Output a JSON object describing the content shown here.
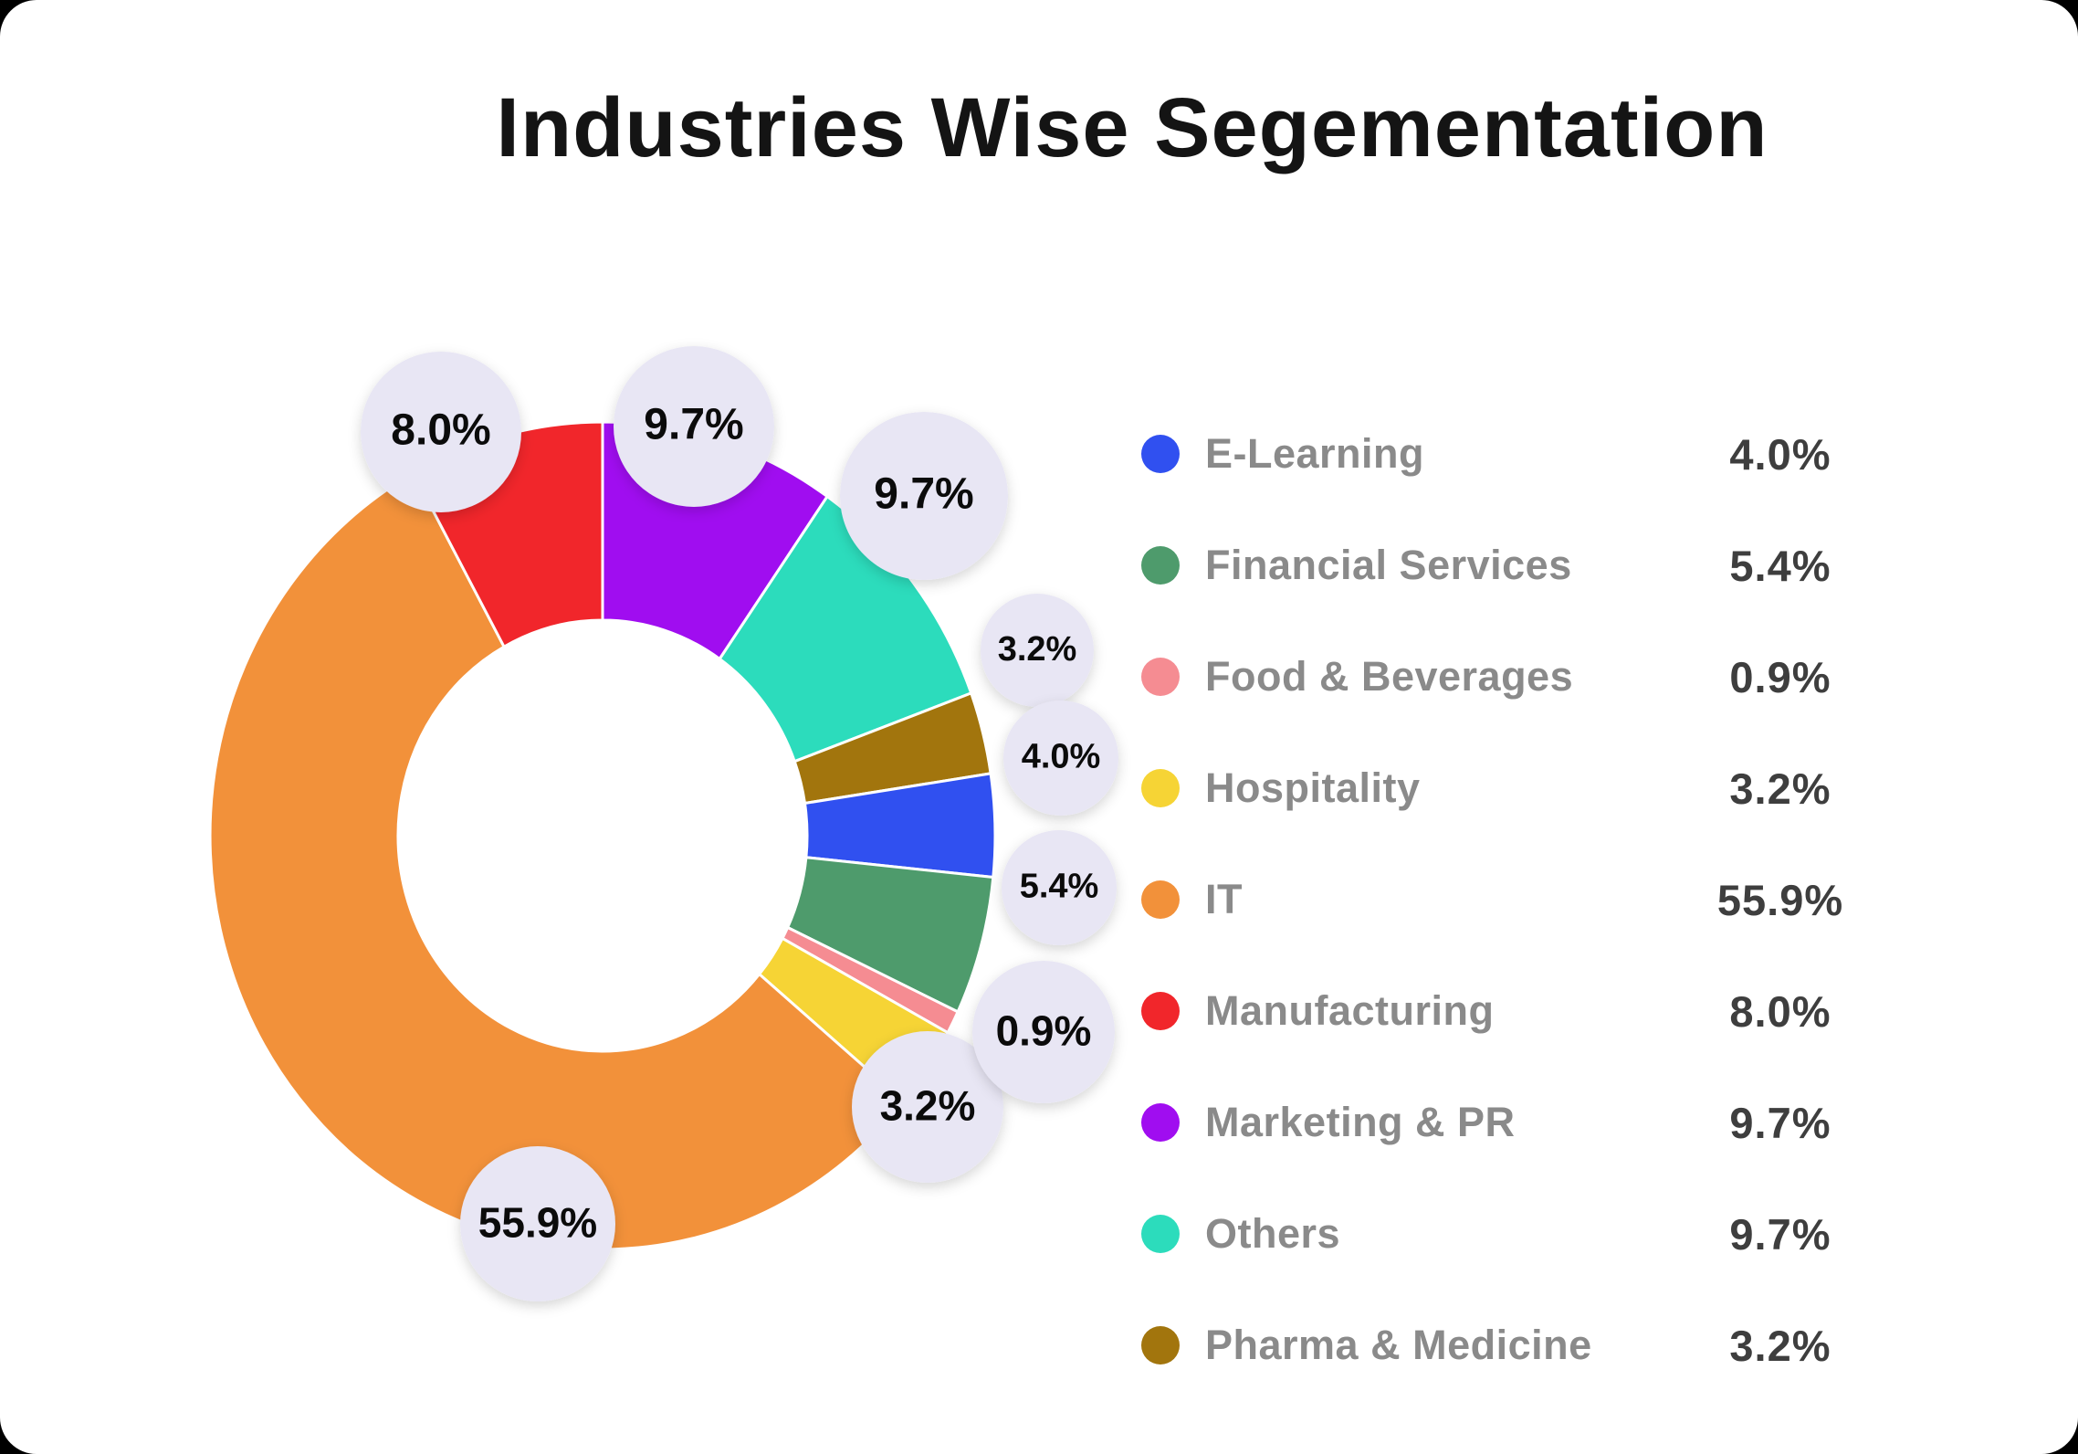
{
  "title": "Industries Wise Segementation",
  "colors": {
    "background": "#000000",
    "card": "#FFFFFF",
    "bubble_fill": "#E8E6F4",
    "bubble_text": "#0B0B0B",
    "legend_label": "#8A8A8A",
    "legend_value": "#3E3E3E",
    "title_text": "#141414"
  },
  "chart_data": {
    "type": "pie",
    "variant": "donut",
    "title": "Industries Wise Segementation",
    "inner_radius_ratio": 0.52,
    "start_angle_deg": 0,
    "direction": "clockwise",
    "legend_position": "right",
    "grid": false,
    "segments_clockwise_from_top": [
      {
        "label": "Marketing & PR",
        "value": 9.7,
        "color": "#A00DF0"
      },
      {
        "label": "Others",
        "value": 9.7,
        "color": "#2CDCBC"
      },
      {
        "label": "Pharma & Medicine",
        "value": 3.2,
        "color": "#A2750D"
      },
      {
        "label": "E-Learning",
        "value": 4.0,
        "color": "#3050F0"
      },
      {
        "label": "Financial Services",
        "value": 5.4,
        "color": "#4E9B6C"
      },
      {
        "label": "Food & Beverages",
        "value": 0.9,
        "color": "#F58C92"
      },
      {
        "label": "Hospitality",
        "value": 3.2,
        "color": "#F6D435"
      },
      {
        "label": "IT",
        "value": 55.9,
        "color": "#F2913A"
      },
      {
        "label": "Manufacturing",
        "value": 8.0,
        "color": "#F1262B"
      }
    ],
    "legend": [
      {
        "label": "E-Learning",
        "value": "4.0%",
        "color": "#3050F0"
      },
      {
        "label": "Financial Services",
        "value": "5.4%",
        "color": "#4E9B6C"
      },
      {
        "label": "Food & Beverages",
        "value": "0.9%",
        "color": "#F58C92"
      },
      {
        "label": "Hospitality",
        "value": "3.2%",
        "color": "#F6D435"
      },
      {
        "label": "IT",
        "value": "55.9%",
        "color": "#F2913A"
      },
      {
        "label": "Manufacturing",
        "value": "8.0%",
        "color": "#F1262B"
      },
      {
        "label": "Marketing & PR",
        "value": "9.7%",
        "color": "#A00DF0"
      },
      {
        "label": "Others",
        "value": "9.7%",
        "color": "#2CDCBC"
      },
      {
        "label": "Pharma & Medicine",
        "value": "3.2%",
        "color": "#A2750D"
      }
    ],
    "callout_labels": [
      "8.0%",
      "9.7%",
      "9.7%",
      "3.2%",
      "4.0%",
      "5.4%",
      "0.9%",
      "3.2%",
      "55.9%"
    ]
  }
}
